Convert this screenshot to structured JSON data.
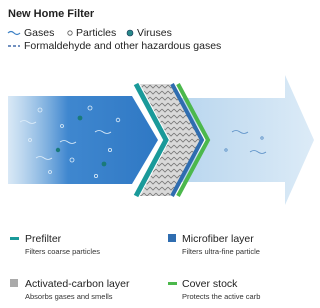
{
  "header": {
    "title": "New Home Filter"
  },
  "key": {
    "items": [
      {
        "label": "Gases"
      },
      {
        "label": "Particles"
      },
      {
        "label": "Viruses"
      }
    ],
    "hazard": "Formaldehyde and other hazardous gases"
  },
  "layers": [
    {
      "name": "Prefilter",
      "description": "Filters coarse particles"
    },
    {
      "name": "Microfiber layer",
      "description": "Filters ultra-fine particle"
    },
    {
      "name": "Activated-carbon layer",
      "description": "Absorbs gases and smells"
    },
    {
      "name": "Cover stock",
      "description": "Protects the active carb"
    }
  ]
}
